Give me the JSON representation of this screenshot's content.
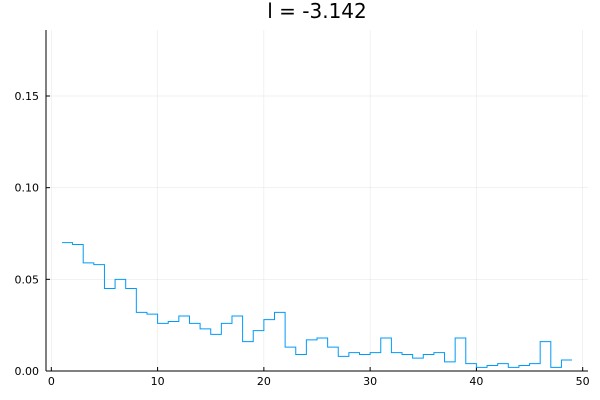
{
  "chart_data": {
    "type": "line",
    "step": "pre",
    "title": "l = -3.142",
    "xlabel": "",
    "ylabel": "",
    "xlim": [
      -0.5,
      50.5
    ],
    "ylim": [
      0,
      0.186
    ],
    "xticks": [
      0,
      10,
      20,
      30,
      40,
      50
    ],
    "yticks": [
      0.0,
      0.05,
      0.1,
      0.15
    ],
    "xtick_labels": [
      "0",
      "10",
      "20",
      "30",
      "40",
      "50"
    ],
    "ytick_labels": [
      "0.00",
      "0.05",
      "0.10",
      "0.15"
    ],
    "grid": true,
    "legend": "none",
    "series": [
      {
        "color": "#009af9",
        "x": [
          1,
          2,
          3,
          4,
          5,
          6,
          7,
          8,
          9,
          10,
          11,
          12,
          13,
          14,
          15,
          16,
          17,
          18,
          19,
          20,
          21,
          22,
          23,
          24,
          25,
          26,
          27,
          28,
          29,
          30,
          31,
          32,
          33,
          34,
          35,
          36,
          37,
          38,
          39,
          40,
          41,
          42,
          43,
          44,
          45,
          46,
          47,
          48,
          49
        ],
        "y": [
          0.07,
          0.07,
          0.069,
          0.059,
          0.058,
          0.045,
          0.05,
          0.045,
          0.032,
          0.031,
          0.026,
          0.027,
          0.03,
          0.026,
          0.023,
          0.02,
          0.026,
          0.03,
          0.016,
          0.022,
          0.028,
          0.032,
          0.013,
          0.009,
          0.017,
          0.018,
          0.013,
          0.008,
          0.01,
          0.009,
          0.01,
          0.018,
          0.01,
          0.009,
          0.007,
          0.009,
          0.01,
          0.005,
          0.018,
          0.004,
          0.002,
          0.003,
          0.004,
          0.002,
          0.003,
          0.004,
          0.016,
          0.002,
          0.006
        ]
      }
    ]
  }
}
